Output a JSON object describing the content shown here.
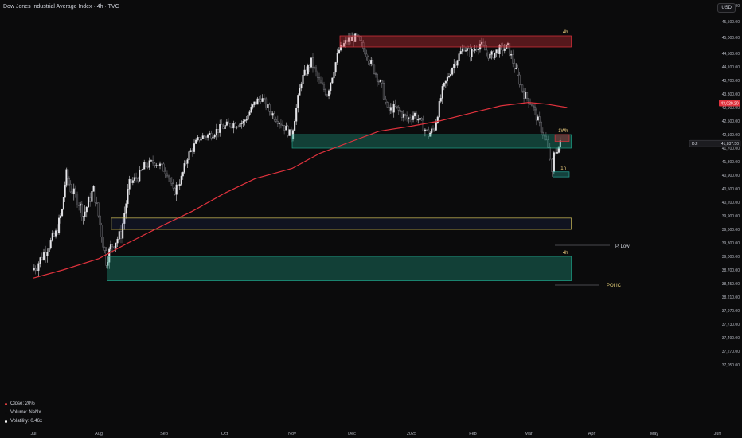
{
  "header": {
    "title": "Dow Jones Industrial Average Index · 4h · TVC",
    "currency": "USD"
  },
  "stats": [
    {
      "label": "Close: 20%",
      "color": "#e04040"
    },
    {
      "label": "Volume: NaNx",
      "color": "#0b0b0c"
    },
    {
      "label": "Volatility: 0.46x",
      "color": "#ffffff"
    }
  ],
  "chart_data": {
    "type": "line",
    "title": "Dow Jones Industrial Average Index · 4h · TVC",
    "price_axis": {
      "ticks": [
        46000,
        45500,
        45000,
        44500,
        44100,
        43700,
        43300,
        42900,
        42500,
        42100,
        41700,
        41300,
        40900,
        40500,
        40200,
        39900,
        39600,
        39300,
        39000,
        38700,
        38450,
        38210,
        37970,
        37730,
        37490,
        37270,
        37050
      ],
      "tick_labels": [
        "46,000.00",
        "45,500.00",
        "45,000.00",
        "44,500.00",
        "44,100.00",
        "43,700.00",
        "43,300.00",
        "42,900.00",
        "42,500.00",
        "42,100.00",
        "41,700.00",
        "41,300.00",
        "40,900.00",
        "40,500.00",
        "40,200.00",
        "39,900.00",
        "39,600.00",
        "39,300.00",
        "39,000.00",
        "38,700.00",
        "38,450.00",
        "38,210.00",
        "37,970.00",
        "37,730.00",
        "37,490.00",
        "37,270.00",
        "37,050.00"
      ],
      "ma_tag": "43,029.20",
      "last_tag_prefix": "DJI",
      "last_tag": "41,837.50"
    },
    "time_axis": [
      "Jul",
      "Aug",
      "Sep",
      "Oct",
      "Nov",
      "Dec",
      "2025",
      "Feb",
      "Mar",
      "Apr",
      "May",
      "Jun"
    ],
    "series": [
      {
        "type": "candles",
        "points": [
          {
            "x": "Jul 1",
            "y": 38700
          },
          {
            "x": "Jul 3",
            "y": 38800
          },
          {
            "x": "Jul 8",
            "y": 39200
          },
          {
            "x": "Jul 12",
            "y": 39500
          },
          {
            "x": "Jul 15",
            "y": 40000
          },
          {
            "x": "Jul 17",
            "y": 40950
          },
          {
            "x": "Jul 19",
            "y": 40500
          },
          {
            "x": "Jul 23",
            "y": 40200
          },
          {
            "x": "Jul 25",
            "y": 39900
          },
          {
            "x": "Jul 30",
            "y": 40500
          },
          {
            "x": "Aug 2",
            "y": 39700
          },
          {
            "x": "Aug 5",
            "y": 38900
          },
          {
            "x": "Aug 7",
            "y": 39200
          },
          {
            "x": "Aug 12",
            "y": 39500
          },
          {
            "x": "Aug 16",
            "y": 40650
          },
          {
            "x": "Aug 20",
            "y": 40850
          },
          {
            "x": "Aug 23",
            "y": 41150
          },
          {
            "x": "Aug 28",
            "y": 41300
          },
          {
            "x": "Sep 3",
            "y": 41000
          },
          {
            "x": "Sep 6",
            "y": 40400
          },
          {
            "x": "Sep 10",
            "y": 40800
          },
          {
            "x": "Sep 13",
            "y": 41450
          },
          {
            "x": "Sep 19",
            "y": 42000
          },
          {
            "x": "Sep 24",
            "y": 42100
          },
          {
            "x": "Sep 30",
            "y": 42300
          },
          {
            "x": "Oct 4",
            "y": 42400
          },
          {
            "x": "Oct 10",
            "y": 42450
          },
          {
            "x": "Oct 15",
            "y": 43000
          },
          {
            "x": "Oct 18",
            "y": 43200
          },
          {
            "x": "Oct 22",
            "y": 42800
          },
          {
            "x": "Oct 28",
            "y": 42400
          },
          {
            "x": "Nov 1",
            "y": 42050
          },
          {
            "x": "Nov 6",
            "y": 43700
          },
          {
            "x": "Nov 11",
            "y": 44250
          },
          {
            "x": "Nov 15",
            "y": 43650
          },
          {
            "x": "Nov 19",
            "y": 43300
          },
          {
            "x": "Nov 25",
            "y": 44600
          },
          {
            "x": "Nov 29",
            "y": 44900
          },
          {
            "x": "Dec 4",
            "y": 45000
          },
          {
            "x": "Dec 9",
            "y": 44500
          },
          {
            "x": "Dec 13",
            "y": 44000
          },
          {
            "x": "Dec 17",
            "y": 43500
          },
          {
            "x": "Dec 20",
            "y": 42800
          },
          {
            "x": "Dec 24",
            "y": 42900
          },
          {
            "x": "Dec 30",
            "y": 42550
          },
          {
            "x": "Jan 3",
            "y": 42700
          },
          {
            "x": "Jan 10",
            "y": 42100
          },
          {
            "x": "Jan 13",
            "y": 42300
          },
          {
            "x": "Jan 17",
            "y": 43400
          },
          {
            "x": "Jan 22",
            "y": 44100
          },
          {
            "x": "Jan 28",
            "y": 44700
          },
          {
            "x": "Jan 31",
            "y": 44500
          },
          {
            "x": "Feb 5",
            "y": 44800
          },
          {
            "x": "Feb 10",
            "y": 44400
          },
          {
            "x": "Feb 14",
            "y": 44600
          },
          {
            "x": "Feb 19",
            "y": 44700
          },
          {
            "x": "Feb 24",
            "y": 43800
          },
          {
            "x": "Feb 27",
            "y": 43300
          },
          {
            "x": "Mar 3",
            "y": 43000
          },
          {
            "x": "Mar 6",
            "y": 42500
          },
          {
            "x": "Mar 10",
            "y": 41900
          },
          {
            "x": "Mar 12",
            "y": 41400
          },
          {
            "x": "Mar 13",
            "y": 40900
          },
          {
            "x": "Mar 14",
            "y": 41500
          },
          {
            "x": "Mar 17",
            "y": 41837
          }
        ]
      },
      {
        "type": "line",
        "color": "#e0323d",
        "points": [
          {
            "x": "Jul 1",
            "y": 38550
          },
          {
            "x": "Jul 15",
            "y": 38700
          },
          {
            "x": "Aug 1",
            "y": 38950
          },
          {
            "x": "Aug 15",
            "y": 39300
          },
          {
            "x": "Sep 1",
            "y": 39700
          },
          {
            "x": "Sep 15",
            "y": 40000
          },
          {
            "x": "Oct 1",
            "y": 40400
          },
          {
            "x": "Oct 15",
            "y": 40800
          },
          {
            "x": "Nov 1",
            "y": 41100
          },
          {
            "x": "Nov 15",
            "y": 41550
          },
          {
            "x": "Dec 1",
            "y": 41900
          },
          {
            "x": "Dec 15",
            "y": 42200
          },
          {
            "x": "Jan 1",
            "y": 42350
          },
          {
            "x": "Jan 15",
            "y": 42500
          },
          {
            "x": "Feb 1",
            "y": 42750
          },
          {
            "x": "Feb 15",
            "y": 42950
          },
          {
            "x": "Mar 1",
            "y": 43050
          },
          {
            "x": "Mar 10",
            "y": 43000
          },
          {
            "x": "Mar 20",
            "y": 42900
          }
        ]
      }
    ],
    "zones": [
      {
        "label": "4h",
        "color": "#e0323d",
        "from": "Nov 25",
        "to": "Mar 22",
        "y_low": 44700,
        "y_high": 45050
      },
      {
        "label": "1Wh",
        "color": "#1fa38a",
        "from": "Nov 1",
        "to": "Mar 22",
        "y_low": 41700,
        "y_high": 42100
      },
      {
        "label": "",
        "color": "#e0323d",
        "from": "Mar 14",
        "to": "Mar 21",
        "y_low": 41900,
        "y_high": 42100
      },
      {
        "label": "1h",
        "color": "#26a69a",
        "from": "Mar 13",
        "to": "Mar 21",
        "y_low": 40850,
        "y_high": 41000
      },
      {
        "label": "POI IC",
        "color": "#3d52b8",
        "from": "Aug 7",
        "to": "Mar 22",
        "y_low": 39600,
        "y_high": 39850
      },
      {
        "label": "4h",
        "color": "#1fa38a",
        "from": "Aug 5",
        "to": "Mar 22",
        "y_low": 38500,
        "y_high": 39000
      }
    ],
    "annotations": [
      "P. Low"
    ]
  }
}
